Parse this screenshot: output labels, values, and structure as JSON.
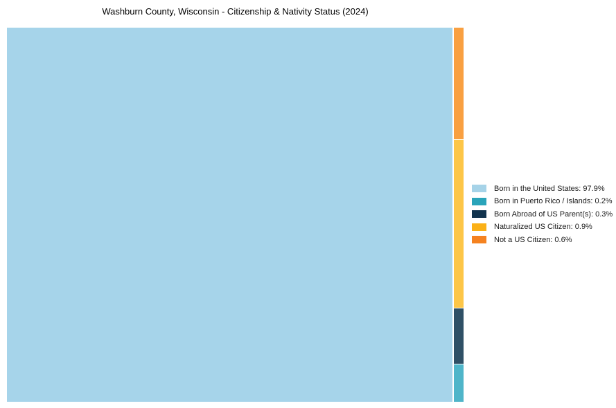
{
  "title": "Washburn County, Wisconsin - Citizenship & Nativity Status (2024)",
  "chart_data": {
    "type": "treemap",
    "title": "Washburn County, Wisconsin - Citizenship & Nativity Status (2024)",
    "unit": "%",
    "legend_position": "right",
    "background_color": "#ffffff",
    "items": [
      {
        "id": "born_us",
        "label": "Born in the United States",
        "value": 97.9,
        "legend_label": "Born in the United States: 97.9%",
        "legend_color": "#a6d3e8",
        "fill": "#a6d4ea"
      },
      {
        "id": "puerto_rico",
        "label": "Born in Puerto Rico / Islands",
        "value": 0.2,
        "legend_label": "Born in Puerto Rico / Islands: 0.2%",
        "legend_color": "#2aa4ba",
        "fill": "#4fb5c9"
      },
      {
        "id": "born_abroad",
        "label": "Born Abroad of US Parent(s)",
        "value": 0.3,
        "legend_label": "Born Abroad of US Parent(s): 0.3%",
        "legend_color": "#12344e",
        "fill": "#2f5066"
      },
      {
        "id": "naturalized",
        "label": "Naturalized US Citizen",
        "value": 0.9,
        "legend_label": "Naturalized US Citizen: 0.9%",
        "legend_color": "#fbb117",
        "fill": "#fdc648"
      },
      {
        "id": "not_citizen",
        "label": "Not a US Citizen",
        "value": 0.6,
        "legend_label": "Not a US Citizen: 0.6%",
        "legend_color": "#f58220",
        "fill": "#f9a041"
      }
    ],
    "strip_order": [
      "not_citizen",
      "naturalized",
      "born_abroad",
      "puerto_rico"
    ]
  }
}
